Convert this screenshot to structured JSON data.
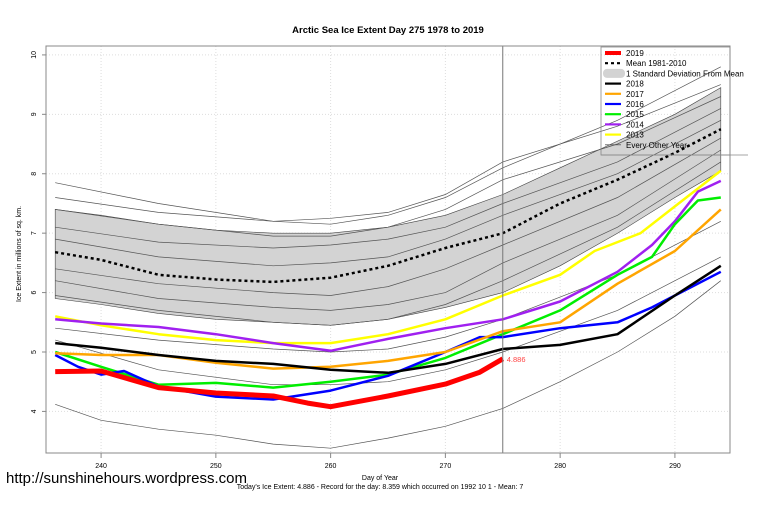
{
  "footer": {
    "url": "http://sunshinehours.wordpress.com",
    "xlabel": "Day of Year",
    "summary": "Today's Ice Extent: 4.886  - Record for the day: 8.359 which occurred on 1992 10 1  - Mean: 7"
  },
  "chart_data": {
    "type": "line",
    "title": "Arctic Sea Ice Extent Day 275 1978 to 2019",
    "xlabel": "Day of Year",
    "ylabel": "Ice Extent in millions of sq. km.",
    "xlim": [
      235.2,
      294.8
    ],
    "ylim": [
      3.3,
      10.15
    ],
    "xticks": [
      240,
      250,
      260,
      270,
      280,
      290
    ],
    "yticks": [
      4,
      5,
      6,
      7,
      8,
      9,
      10
    ],
    "grid": true,
    "current_day_marker": 275,
    "current_value_label": "4.886",
    "legend_position": "top-right",
    "legend": [
      {
        "label": "2019",
        "color": "#ff0000",
        "style": "thick"
      },
      {
        "label": "Mean 1981-2010",
        "color": "#000000",
        "style": "dashed"
      },
      {
        "label": "1 Standard Deviation From Mean",
        "color": "#d3d3d3",
        "style": "band"
      },
      {
        "label": "2018",
        "color": "#000000",
        "style": "solid"
      },
      {
        "label": "2017",
        "color": "#ffa500",
        "style": "solid"
      },
      {
        "label": "2016",
        "color": "#0000ff",
        "style": "solid"
      },
      {
        "label": "2015",
        "color": "#00ee00",
        "style": "solid"
      },
      {
        "label": "2014",
        "color": "#a020f0",
        "style": "solid"
      },
      {
        "label": "2013",
        "color": "#ffff00",
        "style": "solid"
      },
      {
        "label": "Every Other Year",
        "color": "#555555",
        "style": "thin"
      }
    ],
    "band": {
      "name": "1 Standard Deviation From Mean",
      "x": [
        236,
        240,
        245,
        250,
        255,
        260,
        265,
        270,
        275,
        280,
        285,
        290,
        294
      ],
      "upper": [
        7.4,
        7.3,
        7.15,
        7.05,
        7.0,
        7.0,
        7.1,
        7.3,
        7.65,
        8.1,
        8.55,
        9.0,
        9.45
      ],
      "lower": [
        5.9,
        5.8,
        5.65,
        5.55,
        5.5,
        5.45,
        5.55,
        5.75,
        6.0,
        6.45,
        7.0,
        7.6,
        8.05
      ]
    },
    "series": [
      {
        "name": "Mean 1981-2010",
        "color": "#000000",
        "width": 2.5,
        "dash": "3,3",
        "x": [
          236,
          240,
          245,
          250,
          255,
          260,
          265,
          270,
          275,
          280,
          285,
          290,
          294
        ],
        "values": [
          6.68,
          6.55,
          6.3,
          6.22,
          6.18,
          6.25,
          6.45,
          6.75,
          7.0,
          7.5,
          7.9,
          8.35,
          8.75
        ]
      },
      {
        "name": "2013",
        "color": "#ffff00",
        "width": 2.5,
        "x": [
          236,
          240,
          245,
          250,
          255,
          260,
          265,
          270,
          275,
          280,
          283,
          287,
          290,
          294
        ],
        "values": [
          5.6,
          5.45,
          5.3,
          5.2,
          5.15,
          5.15,
          5.3,
          5.55,
          5.95,
          6.3,
          6.7,
          7.0,
          7.45,
          8.05
        ]
      },
      {
        "name": "2014",
        "color": "#a020f0",
        "width": 2.5,
        "x": [
          236,
          240,
          245,
          250,
          255,
          260,
          265,
          270,
          275,
          280,
          285,
          288,
          290,
          292,
          294
        ],
        "values": [
          5.55,
          5.48,
          5.42,
          5.3,
          5.15,
          5.02,
          5.22,
          5.4,
          5.55,
          5.85,
          6.35,
          6.8,
          7.2,
          7.7,
          7.88
        ]
      },
      {
        "name": "2015",
        "color": "#00ee00",
        "width": 2.5,
        "x": [
          236,
          240,
          245,
          250,
          255,
          260,
          265,
          270,
          275,
          280,
          285,
          288,
          290,
          292,
          294
        ],
        "values": [
          5.0,
          4.75,
          4.45,
          4.48,
          4.4,
          4.5,
          4.62,
          4.9,
          5.3,
          5.7,
          6.3,
          6.6,
          7.15,
          7.55,
          7.6
        ]
      },
      {
        "name": "2016",
        "color": "#0000ff",
        "width": 2.5,
        "x": [
          236,
          238,
          240,
          242,
          245,
          250,
          255,
          260,
          265,
          270,
          273,
          275,
          280,
          285,
          288,
          290,
          294
        ],
        "values": [
          4.95,
          4.75,
          4.62,
          4.68,
          4.42,
          4.25,
          4.2,
          4.35,
          4.6,
          5.0,
          5.25,
          5.25,
          5.4,
          5.5,
          5.75,
          5.95,
          6.35
        ]
      },
      {
        "name": "2017",
        "color": "#ffa500",
        "width": 2.5,
        "x": [
          236,
          240,
          245,
          250,
          255,
          260,
          265,
          270,
          275,
          280,
          285,
          290,
          294
        ],
        "values": [
          4.98,
          4.95,
          4.95,
          4.82,
          4.72,
          4.75,
          4.85,
          5.0,
          5.35,
          5.5,
          6.15,
          6.7,
          7.4
        ]
      },
      {
        "name": "2018",
        "color": "#000000",
        "width": 2.5,
        "x": [
          236,
          240,
          245,
          250,
          255,
          260,
          265,
          270,
          275,
          280,
          285,
          290,
          294
        ],
        "values": [
          5.15,
          5.07,
          4.95,
          4.85,
          4.8,
          4.7,
          4.65,
          4.8,
          5.05,
          5.12,
          5.3,
          5.95,
          6.45
        ]
      },
      {
        "name": "2019",
        "color": "#ff0000",
        "width": 5,
        "x": [
          236,
          240,
          245,
          250,
          255,
          258,
          260,
          265,
          270,
          273,
          275
        ],
        "values": [
          4.67,
          4.68,
          4.4,
          4.31,
          4.26,
          4.14,
          4.08,
          4.26,
          4.46,
          4.66,
          4.886
        ]
      }
    ],
    "other_years_sample": [
      {
        "x": [
          236,
          245,
          255,
          260,
          265,
          270,
          275,
          285,
          294
        ],
        "values": [
          7.85,
          7.5,
          7.2,
          7.15,
          7.3,
          7.6,
          8.1,
          8.9,
          9.8
        ]
      },
      {
        "x": [
          236,
          245,
          255,
          260,
          265,
          270,
          275,
          285,
          294
        ],
        "values": [
          7.6,
          7.35,
          7.2,
          7.25,
          7.35,
          7.65,
          8.2,
          8.8,
          9.5
        ]
      },
      {
        "x": [
          236,
          245,
          255,
          260,
          265,
          270,
          275,
          285,
          294
        ],
        "values": [
          7.4,
          7.15,
          6.95,
          6.95,
          7.1,
          7.4,
          7.9,
          8.5,
          9.3
        ]
      },
      {
        "x": [
          236,
          245,
          255,
          260,
          265,
          270,
          275,
          285,
          294
        ],
        "values": [
          7.1,
          6.85,
          6.75,
          6.8,
          6.9,
          7.1,
          7.5,
          8.2,
          9.1
        ]
      },
      {
        "x": [
          236,
          245,
          255,
          260,
          265,
          270,
          275,
          285,
          294
        ],
        "values": [
          6.9,
          6.6,
          6.45,
          6.5,
          6.6,
          6.9,
          7.3,
          8.0,
          8.9
        ]
      },
      {
        "x": [
          236,
          245,
          255,
          260,
          265,
          270,
          275,
          285,
          294
        ],
        "values": [
          6.4,
          6.15,
          6.0,
          5.95,
          6.1,
          6.4,
          6.8,
          7.6,
          8.6
        ]
      },
      {
        "x": [
          236,
          245,
          255,
          260,
          265,
          270,
          275,
          285,
          294
        ],
        "values": [
          6.2,
          5.9,
          5.75,
          5.7,
          5.8,
          6.0,
          6.5,
          7.3,
          8.4
        ]
      },
      {
        "x": [
          236,
          245,
          255,
          260,
          265,
          270,
          275,
          285,
          294
        ],
        "values": [
          5.95,
          5.7,
          5.5,
          5.45,
          5.55,
          5.8,
          6.2,
          7.1,
          8.2
        ]
      },
      {
        "x": [
          236,
          245,
          255,
          260,
          265,
          270,
          275,
          285,
          294
        ],
        "values": [
          5.4,
          5.2,
          5.05,
          5.0,
          5.05,
          5.25,
          5.55,
          6.3,
          7.2
        ]
      },
      {
        "x": [
          236,
          245,
          255,
          260,
          265,
          270,
          275,
          285,
          294
        ],
        "values": [
          5.2,
          4.7,
          4.45,
          4.45,
          4.5,
          4.7,
          5.0,
          5.7,
          6.6
        ]
      },
      {
        "x": [
          236,
          240,
          245,
          250,
          255,
          260,
          265,
          270,
          275,
          280,
          285,
          290,
          294
        ],
        "values": [
          4.12,
          3.85,
          3.7,
          3.6,
          3.45,
          3.38,
          3.55,
          3.75,
          4.05,
          4.5,
          5.0,
          5.6,
          6.2
        ]
      }
    ]
  }
}
